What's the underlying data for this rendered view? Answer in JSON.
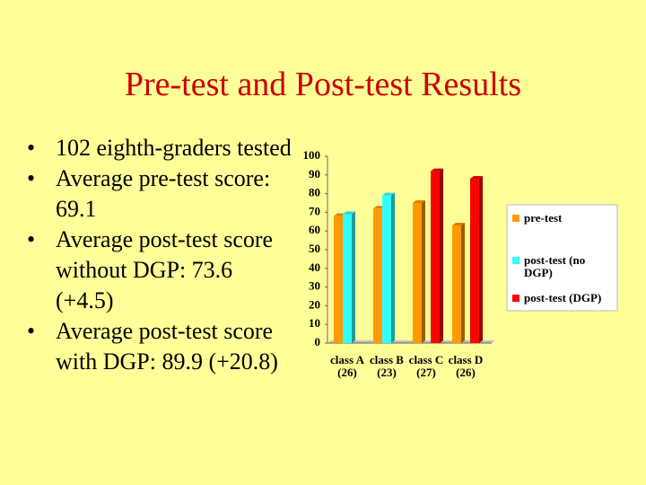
{
  "title": "Pre-test and Post-test Results",
  "bullets": [
    "102 eighth-graders tested",
    "Average pre-test score: 69.1",
    "Average post-test score without DGP: 73.6 (+4.5)",
    "Average post-test score with DGP: 89.9 (+20.8)"
  ],
  "chart_data": {
    "type": "bar",
    "categories": [
      "class A (26)",
      "class B (23)",
      "class C (27)",
      "class D (26)"
    ],
    "series": [
      {
        "name": "pre-test",
        "color": "#ff9900",
        "values": [
          68,
          72,
          75,
          63
        ]
      },
      {
        "name": "post-test (no DGP)",
        "color": "#33ffff",
        "values": [
          69,
          79,
          null,
          null
        ]
      },
      {
        "name": "post-test (DGP)",
        "color": "#ff0000",
        "values": [
          null,
          null,
          92,
          88
        ]
      }
    ],
    "ylim": [
      0,
      100
    ],
    "yticks": [
      0,
      10,
      20,
      30,
      40,
      50,
      60,
      70,
      80,
      90,
      100
    ]
  }
}
